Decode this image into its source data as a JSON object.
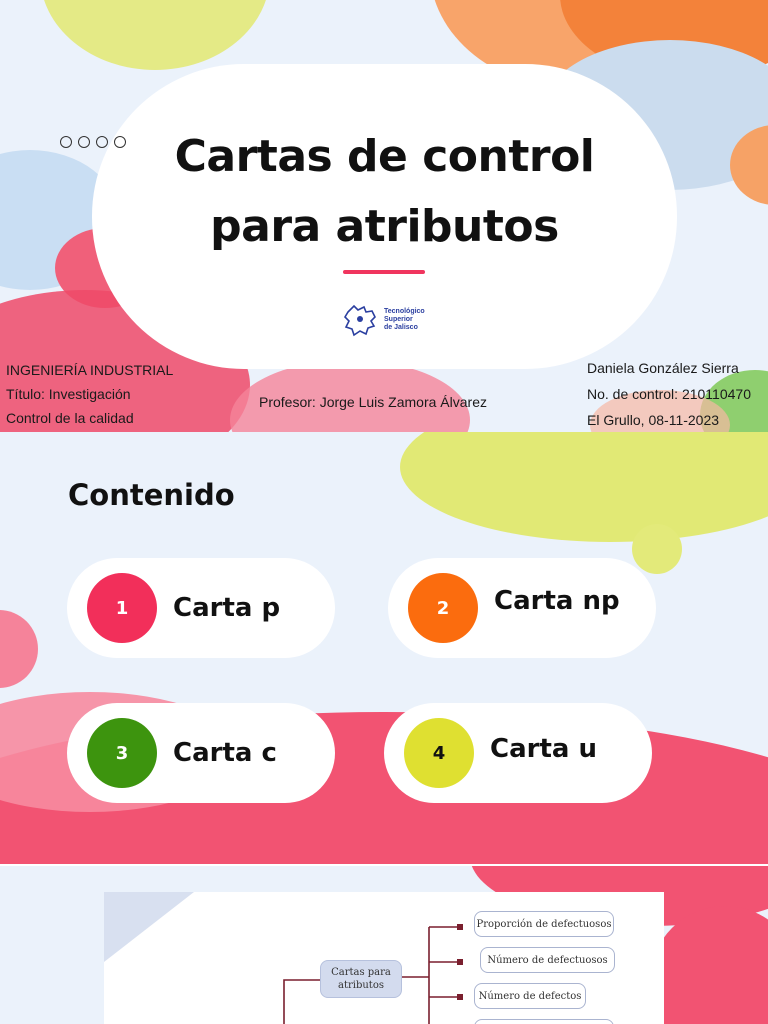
{
  "slide1": {
    "title_line1": "Cartas de control",
    "title_line2": "para atributos",
    "logo_text": [
      "Tecnológico",
      "Superior",
      "de Jalisco"
    ],
    "left_info": [
      "INGENIERÍA INDUSTRIAL",
      "Título: Investigación",
      "Control de la calidad"
    ],
    "professor": "Profesor: Jorge Luis Zamora Álvarez",
    "right_info": [
      "Daniela González Sierra",
      "No. de control: 210110470",
      "El Grullo, 08-11-2023"
    ]
  },
  "slide2": {
    "heading": "Contenido",
    "items": [
      {
        "number": "1",
        "label": "Carta p",
        "color": "#f22f5a"
      },
      {
        "number": "2",
        "label": "Carta np",
        "color": "#fb6c0e"
      },
      {
        "number": "3",
        "label": "Carta c",
        "color": "#3d940e"
      },
      {
        "number": "4",
        "label": "Carta u",
        "color": "#dfe031"
      }
    ]
  },
  "slide3": {
    "root": "Cartas para atributos",
    "branches": [
      "Proporción de defectuosos",
      "Número de defectuosos",
      "Número de defectos"
    ]
  }
}
